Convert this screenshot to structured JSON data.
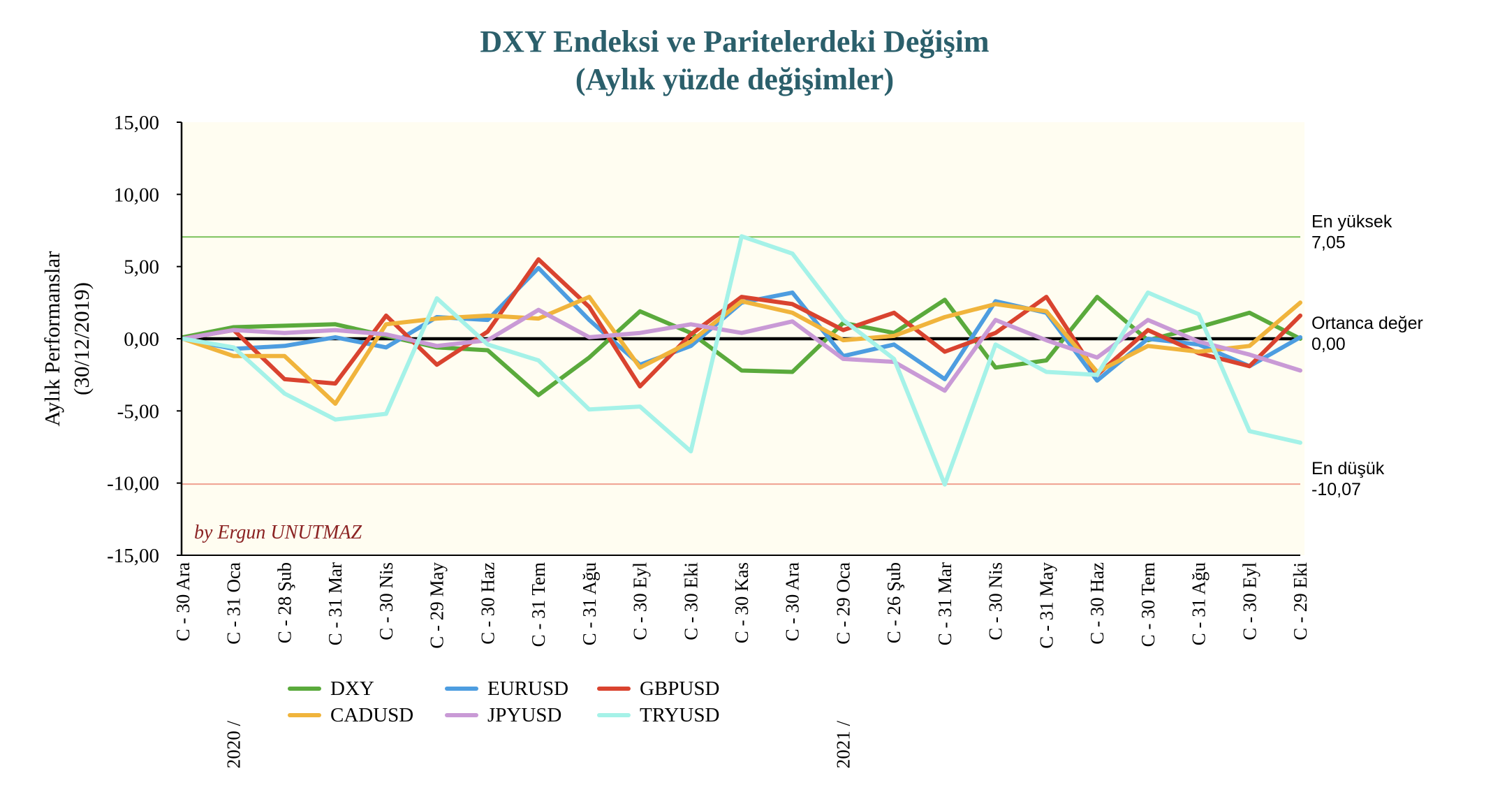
{
  "chart_data": {
    "type": "line",
    "title": "DXY Endeksi ve Paritelerdeki Değişim",
    "subtitle": "(Aylık yüzde değişimler)",
    "ylabel_line1": "Aylık Performanslar",
    "ylabel_line2": "(30/12/2019)",
    "ylim": [
      -15,
      15
    ],
    "yticks": [
      15,
      10,
      5,
      0,
      -5,
      -10,
      -15
    ],
    "ytick_labels": [
      "15,00",
      "10,00",
      "5,00",
      "0,00",
      "-5,00",
      "-10,00",
      "-15,00"
    ],
    "categories": [
      "C - 30 Ara",
      "C - 31 Oca",
      "C - 28 Şub",
      "C - 31 Mar",
      "C - 30 Nis",
      "C - 29 May",
      "C - 30 Haz",
      "C - 31 Tem",
      "C - 31 Ağu",
      "C - 30 Eyl",
      "C - 30 Eki",
      "C - 30 Kas",
      "C - 30 Ara",
      "C - 29 Oca",
      "C - 26 Şub",
      "C - 31 Mar",
      "C - 30 Nis",
      "C - 31 May",
      "C - 30 Haz",
      "C - 30 Tem",
      "C - 31 Ağu",
      "C - 30 Eyl",
      "C - 29 Eki"
    ],
    "year_labels": [
      {
        "index": 1,
        "text": "2020 /"
      },
      {
        "index": 13,
        "text": "2021 /"
      }
    ],
    "series": [
      {
        "name": "DXY",
        "color": "#5aaa3c",
        "values": [
          0.1,
          0.8,
          0.9,
          1.0,
          0.2,
          -0.6,
          -0.8,
          -3.9,
          -1.3,
          1.9,
          0.4,
          -2.2,
          -2.3,
          1.1,
          0.4,
          2.7,
          -2.0,
          -1.5,
          2.9,
          -0.1,
          0.8,
          1.8,
          0.0
        ]
      },
      {
        "name": "EURUSD",
        "color": "#4d9de0",
        "values": [
          0.0,
          -0.7,
          -0.5,
          0.1,
          -0.6,
          1.5,
          1.3,
          4.9,
          1.3,
          -1.8,
          -0.5,
          2.5,
          3.2,
          -1.2,
          -0.4,
          -2.8,
          2.6,
          1.8,
          -2.9,
          0.0,
          -0.4,
          -1.9,
          0.1
        ]
      },
      {
        "name": "GBPUSD",
        "color": "#d9432f",
        "values": [
          0.0,
          0.6,
          -2.8,
          -3.1,
          1.6,
          -1.8,
          0.5,
          5.5,
          2.2,
          -3.3,
          0.3,
          2.9,
          2.4,
          0.6,
          1.8,
          -0.9,
          0.4,
          2.9,
          -2.5,
          0.6,
          -1.0,
          -1.9,
          1.6
        ]
      },
      {
        "name": "CADUSD",
        "color": "#f0b43c",
        "values": [
          0.0,
          -1.2,
          -1.2,
          -4.5,
          1.0,
          1.4,
          1.6,
          1.4,
          2.9,
          -2.0,
          -0.2,
          2.6,
          1.8,
          -0.1,
          0.2,
          1.5,
          2.4,
          1.9,
          -2.3,
          -0.5,
          -0.9,
          -0.5,
          2.5
        ]
      },
      {
        "name": "JPYUSD",
        "color": "#c99ad6",
        "values": [
          0.0,
          0.6,
          0.4,
          0.6,
          0.3,
          -0.5,
          -0.1,
          2.0,
          0.1,
          0.4,
          1.0,
          0.4,
          1.2,
          -1.4,
          -1.6,
          -3.6,
          1.3,
          -0.1,
          -1.3,
          1.3,
          -0.2,
          -1.1,
          -2.2
        ]
      },
      {
        "name": "TRYUSD",
        "color": "#a5f2e8",
        "values": [
          0.0,
          -0.6,
          -3.8,
          -5.6,
          -5.2,
          2.8,
          -0.4,
          -1.5,
          -4.9,
          -4.7,
          -7.8,
          7.1,
          5.9,
          1.3,
          -1.4,
          -10.1,
          -0.4,
          -2.3,
          -2.5,
          3.2,
          1.7,
          -6.4,
          -7.2
        ]
      }
    ],
    "reference_lines": [
      {
        "label": "En yüksek",
        "value_label": "7,05",
        "value": 7.05,
        "color": "#7ac25a"
      },
      {
        "label": "Ortanca değer",
        "value_label": "0,00",
        "value": 0.0,
        "color": "#6f8f60"
      },
      {
        "label": "En düşük",
        "value_label": "-10,07",
        "value": -10.07,
        "color": "#f0a090"
      }
    ],
    "credit": "by Ergun UNUTMAZ",
    "legend": [
      {
        "name": "DXY",
        "color": "#5aaa3c"
      },
      {
        "name": "EURUSD",
        "color": "#4d9de0"
      },
      {
        "name": "GBPUSD",
        "color": "#d9432f"
      },
      {
        "name": "CADUSD",
        "color": "#f0b43c"
      },
      {
        "name": "JPYUSD",
        "color": "#c99ad6"
      },
      {
        "name": "TRYUSD",
        "color": "#a5f2e8"
      }
    ],
    "plot_background": "#fffdf1",
    "grid": false,
    "legend_position": "bottom-left"
  }
}
